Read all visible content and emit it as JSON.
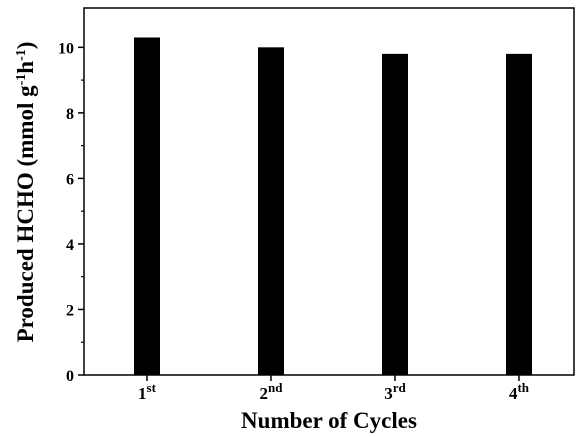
{
  "chart_data": {
    "type": "bar",
    "categories": [
      {
        "base": "1",
        "sup": "st"
      },
      {
        "base": "2",
        "sup": "nd"
      },
      {
        "base": "3",
        "sup": "rd"
      },
      {
        "base": "4",
        "sup": "th"
      }
    ],
    "values": [
      10.3,
      10.0,
      9.8,
      9.8
    ],
    "ylim": [
      0,
      11.2
    ],
    "yticks": [
      "0",
      "2",
      "4",
      "6",
      "8",
      "10"
    ],
    "xlabel": "Number of Cycles",
    "ylabel": {
      "main": "Produced HCHO (mmol g",
      "sup1": "-1",
      "mid": "h",
      "sup2": "-1",
      "end": ")"
    },
    "bar_color": "#000000",
    "grid": false
  }
}
